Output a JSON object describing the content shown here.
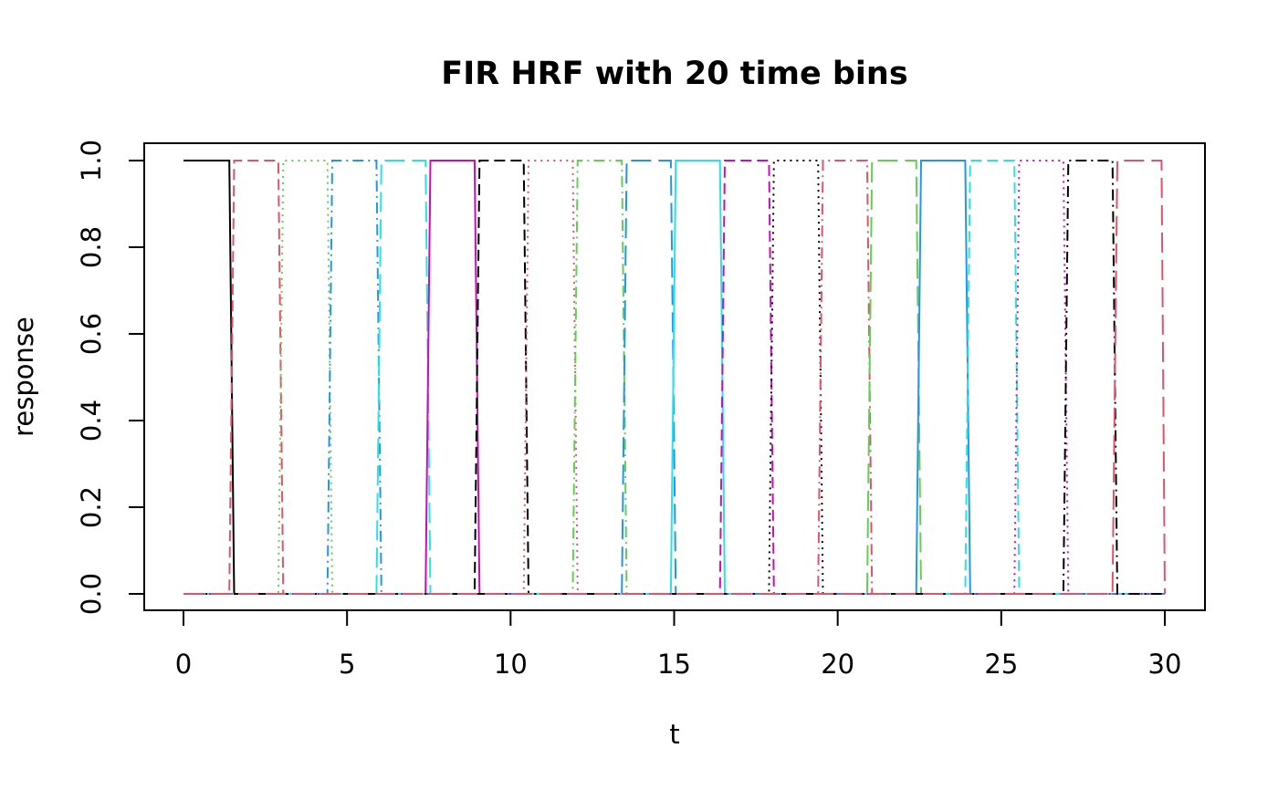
{
  "chart_data": {
    "type": "line",
    "title": "FIR HRF with 20 time bins",
    "xlabel": "t",
    "ylabel": "response",
    "xlim": [
      0,
      30
    ],
    "ylim": [
      0,
      1
    ],
    "x_ticks": [
      0,
      5,
      10,
      15,
      20,
      25,
      30
    ],
    "y_ticks": [
      0.0,
      0.2,
      0.4,
      0.6,
      0.8,
      1.0
    ],
    "y_tick_labels": [
      "0.0",
      "0.2",
      "0.4",
      "0.6",
      "0.8",
      "1.0"
    ],
    "grid": false,
    "legend": "none",
    "series": [
      {
        "x": [
          0,
          1.4,
          1.55,
          30
        ],
        "y": [
          1,
          1,
          0,
          0
        ],
        "color": "#000000",
        "dash": "solid"
      },
      {
        "x": [
          0,
          1.4,
          1.55,
          2.9,
          3.05,
          30
        ],
        "y": [
          0,
          0,
          1,
          1,
          0,
          0
        ],
        "color": "#DF536B",
        "dash": "dashed"
      },
      {
        "x": [
          0,
          2.9,
          3.05,
          4.4,
          4.55,
          30
        ],
        "y": [
          0,
          0,
          1,
          1,
          0,
          0
        ],
        "color": "#61D04F",
        "dash": "dotted"
      },
      {
        "x": [
          0,
          4.4,
          4.55,
          5.9,
          6.05,
          30
        ],
        "y": [
          0,
          0,
          1,
          1,
          0,
          0
        ],
        "color": "#2297E6",
        "dash": "dotdash"
      },
      {
        "x": [
          0,
          5.9,
          6.05,
          7.4,
          7.55,
          30
        ],
        "y": [
          0,
          0,
          1,
          1,
          0,
          0
        ],
        "color": "#28E2E5",
        "dash": "longdash"
      },
      {
        "x": [
          0,
          7.4,
          7.55,
          8.9,
          9.05,
          30
        ],
        "y": [
          0,
          0,
          1,
          1,
          0,
          0
        ],
        "color": "#CD0BBC",
        "dash": "solid"
      },
      {
        "x": [
          0,
          8.9,
          9.05,
          10.4,
          10.55,
          30
        ],
        "y": [
          0,
          0,
          1,
          1,
          0,
          0
        ],
        "color": "#000000",
        "dash": "dashed"
      },
      {
        "x": [
          0,
          10.4,
          10.55,
          11.9,
          12.05,
          30
        ],
        "y": [
          0,
          0,
          1,
          1,
          0,
          0
        ],
        "color": "#DF536B",
        "dash": "dotted"
      },
      {
        "x": [
          0,
          11.9,
          12.05,
          13.4,
          13.55,
          30
        ],
        "y": [
          0,
          0,
          1,
          1,
          0,
          0
        ],
        "color": "#61D04F",
        "dash": "dotdash"
      },
      {
        "x": [
          0,
          13.4,
          13.55,
          14.9,
          15.05,
          30
        ],
        "y": [
          0,
          0,
          1,
          1,
          0,
          0
        ],
        "color": "#2297E6",
        "dash": "longdash"
      },
      {
        "x": [
          0,
          14.9,
          15.05,
          16.4,
          16.55,
          30
        ],
        "y": [
          0,
          0,
          1,
          1,
          0,
          0
        ],
        "color": "#28E2E5",
        "dash": "solid"
      },
      {
        "x": [
          0,
          16.4,
          16.55,
          17.9,
          18.05,
          30
        ],
        "y": [
          0,
          0,
          1,
          1,
          0,
          0
        ],
        "color": "#CD0BBC",
        "dash": "dashed"
      },
      {
        "x": [
          0,
          17.9,
          18.05,
          19.4,
          19.55,
          30
        ],
        "y": [
          0,
          0,
          1,
          1,
          0,
          0
        ],
        "color": "#000000",
        "dash": "dotted"
      },
      {
        "x": [
          0,
          19.4,
          19.55,
          20.9,
          21.05,
          30
        ],
        "y": [
          0,
          0,
          1,
          1,
          0,
          0
        ],
        "color": "#DF536B",
        "dash": "dotdash"
      },
      {
        "x": [
          0,
          20.9,
          21.05,
          22.4,
          22.55,
          30
        ],
        "y": [
          0,
          0,
          1,
          1,
          0,
          0
        ],
        "color": "#61D04F",
        "dash": "longdash"
      },
      {
        "x": [
          0,
          22.4,
          22.55,
          23.9,
          24.05,
          30
        ],
        "y": [
          0,
          0,
          1,
          1,
          0,
          0
        ],
        "color": "#2297E6",
        "dash": "solid"
      },
      {
        "x": [
          0,
          23.9,
          24.05,
          25.4,
          25.55,
          30
        ],
        "y": [
          0,
          0,
          1,
          1,
          0,
          0
        ],
        "color": "#28E2E5",
        "dash": "dashed"
      },
      {
        "x": [
          0,
          25.4,
          25.55,
          26.9,
          27.05,
          30
        ],
        "y": [
          0,
          0,
          1,
          1,
          0,
          0
        ],
        "color": "#CD0BBC",
        "dash": "dotted"
      },
      {
        "x": [
          0,
          26.9,
          27.05,
          28.4,
          28.55,
          30
        ],
        "y": [
          0,
          0,
          1,
          1,
          0,
          0
        ],
        "color": "#000000",
        "dash": "dotdash"
      },
      {
        "x": [
          0,
          28.4,
          28.55,
          29.9,
          30
        ],
        "y": [
          0,
          0,
          1,
          1,
          0
        ],
        "color": "#DF536B",
        "dash": "longdash"
      }
    ]
  }
}
